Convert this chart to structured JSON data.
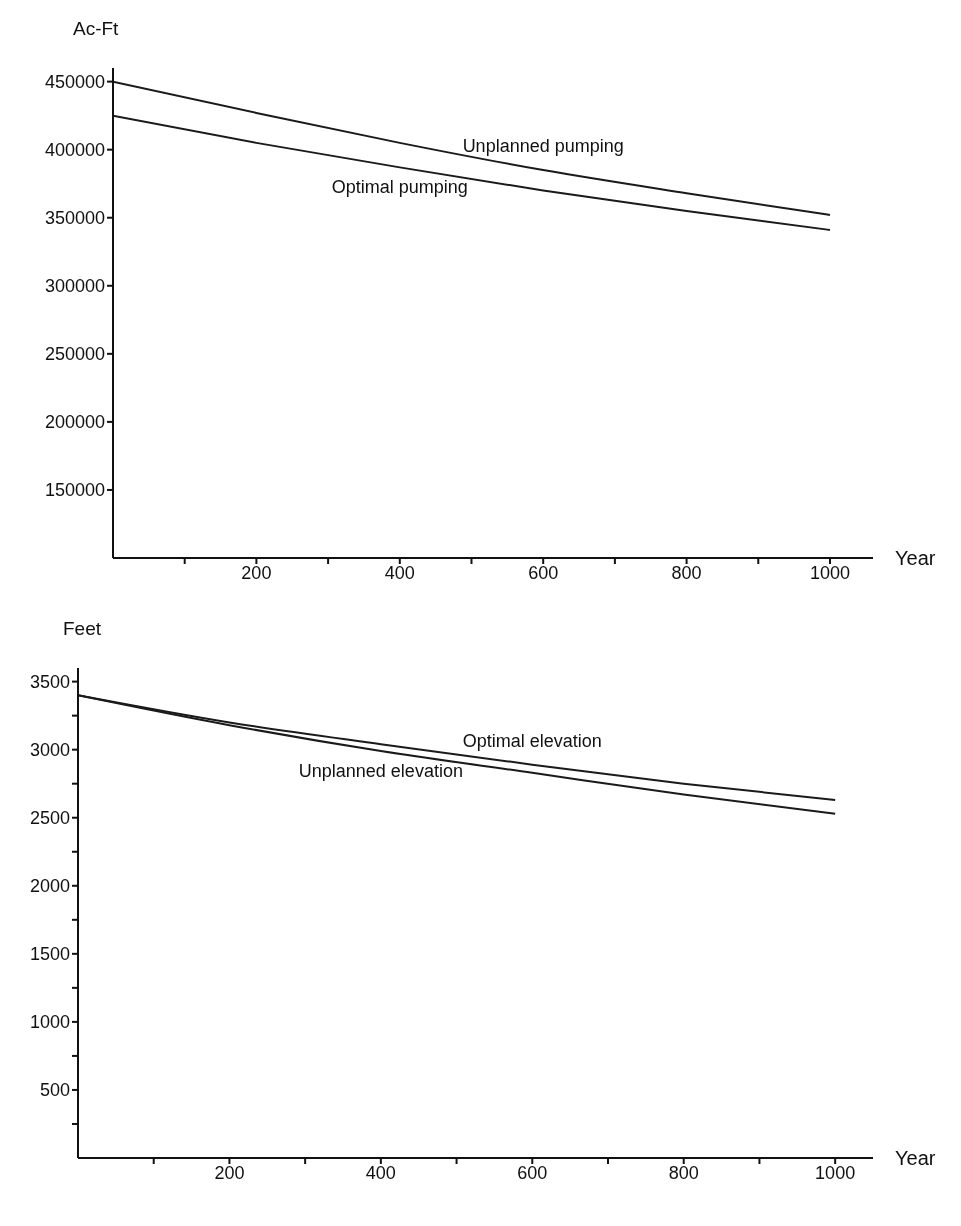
{
  "chart_data": [
    {
      "type": "line",
      "xlabel": "Year",
      "ylabel": "Ac-Ft",
      "x": [
        0,
        200,
        400,
        600,
        800,
        1000
      ],
      "xlim": [
        0,
        1060
      ],
      "xticks": [
        {
          "value": 100,
          "label": null
        },
        200,
        {
          "value": 300,
          "label": null
        },
        400,
        {
          "value": 500,
          "label": null
        },
        600,
        {
          "value": 700,
          "label": null
        },
        800,
        {
          "value": 900,
          "label": null
        },
        1000
      ],
      "ylim": [
        100000,
        460000
      ],
      "yticks": [
        150000,
        200000,
        250000,
        300000,
        350000,
        400000,
        450000
      ],
      "grid": false,
      "legend": false,
      "marker": "none",
      "series": [
        {
          "name": "Unplanned pumping",
          "color": "#1a1a1a",
          "values": [
            450000,
            427000,
            405000,
            385000,
            368000,
            352000
          ]
        },
        {
          "name": "Optimal pumping",
          "color": "#1a1a1a",
          "values": [
            425000,
            405000,
            387000,
            370000,
            355000,
            341000
          ]
        }
      ]
    },
    {
      "type": "line",
      "xlabel": "Year",
      "ylabel": "Feet",
      "x": [
        0,
        200,
        400,
        600,
        800,
        1000
      ],
      "xlim": [
        0,
        1050
      ],
      "xticks": [
        {
          "value": 100,
          "label": null
        },
        200,
        {
          "value": 300,
          "label": null
        },
        400,
        {
          "value": 500,
          "label": null
        },
        600,
        {
          "value": 700,
          "label": null
        },
        800,
        {
          "value": 900,
          "label": null
        },
        1000
      ],
      "ylim": [
        0,
        3600
      ],
      "yticks": [
        {
          "value": 250,
          "label": null
        },
        500,
        {
          "value": 750,
          "label": null
        },
        1000,
        {
          "value": 1250,
          "label": null
        },
        1500,
        {
          "value": 1750,
          "label": null
        },
        2000,
        {
          "value": 2250,
          "label": null
        },
        2500,
        {
          "value": 2750,
          "label": null
        },
        3000,
        {
          "value": 3250,
          "label": null
        },
        3500
      ],
      "grid": false,
      "legend": false,
      "marker": "none",
      "series": [
        {
          "name": "Optimal elevation",
          "color": "#1a1a1a",
          "values": [
            3400,
            3200,
            3040,
            2890,
            2750,
            2630
          ]
        },
        {
          "name": "Unplanned elevation",
          "color": "#1a1a1a",
          "values": [
            3400,
            3180,
            2990,
            2830,
            2670,
            2530
          ]
        }
      ]
    }
  ]
}
